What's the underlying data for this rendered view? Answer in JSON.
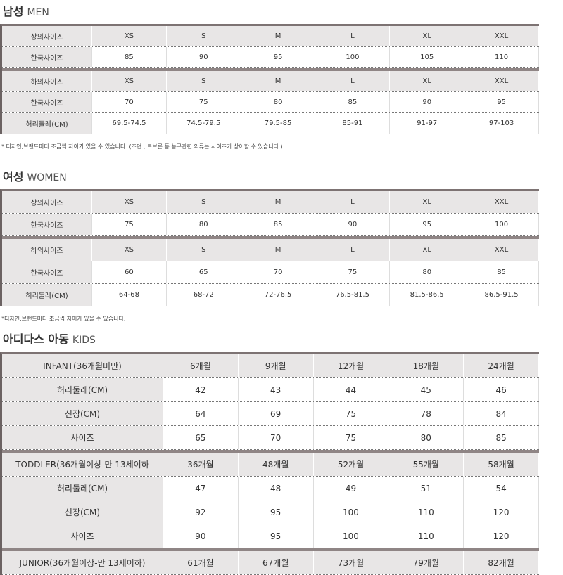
{
  "sections": [
    {
      "title_ko": "남성",
      "title_en": "MEN",
      "groups": [
        [
          [
            "상의사이즈",
            "XS",
            "S",
            "M",
            "L",
            "XL",
            "XXL"
          ],
          [
            "한국사이즈",
            "85",
            "90",
            "95",
            "100",
            "105",
            "110"
          ]
        ],
        [
          [
            "하의사이즈",
            "XS",
            "S",
            "M",
            "L",
            "XL",
            "XXL"
          ],
          [
            "한국사이즈",
            "70",
            "75",
            "80",
            "85",
            "90",
            "95"
          ],
          [
            "허리둘레(CM)",
            "69.5-74.5",
            "74.5-79.5",
            "79.5-85",
            "85-91",
            "91-97",
            "97-103"
          ]
        ]
      ],
      "note": "* 디자인,브랜드마다 조금씩 차이가 있을 수 있습니다. (조던 , 르브론 등 농구관련 의류는 사이즈가 상이할 수 있습니다.)"
    },
    {
      "title_ko": "여성",
      "title_en": "WOMEN",
      "groups": [
        [
          [
            "상의사이즈",
            "XS",
            "S",
            "M",
            "L",
            "XL",
            "XXL"
          ],
          [
            "한국사이즈",
            "75",
            "80",
            "85",
            "90",
            "95",
            "100"
          ]
        ],
        [
          [
            "하의사이즈",
            "XS",
            "S",
            "M",
            "L",
            "XL",
            "XXL"
          ],
          [
            "한국사이즈",
            "60",
            "65",
            "70",
            "75",
            "80",
            "85"
          ],
          [
            "허리둘레(CM)",
            "64-68",
            "68-72",
            "72-76.5",
            "76.5-81.5",
            "81.5-86.5",
            "86.5-91.5"
          ]
        ]
      ],
      "note": "*디자인,브랜드마다 조금씩 차이가 있을 수 있습니다."
    },
    {
      "title_ko": "아디다스 아동",
      "title_en": "KIDS",
      "groups": [
        [
          [
            "INFANT(36개월미만)",
            "6개월",
            "9개월",
            "12개월",
            "18개월",
            "24개월"
          ],
          [
            "허리둘레(CM)",
            "42",
            "43",
            "44",
            "45",
            "46"
          ],
          [
            "신장(CM)",
            "64",
            "69",
            "75",
            "78",
            "84"
          ],
          [
            "사이즈",
            "65",
            "70",
            "75",
            "80",
            "85"
          ]
        ],
        [
          [
            "TODDLER(36개월이상-만 13세이하",
            "36개월",
            "48개월",
            "52개월",
            "55개월",
            "58개월"
          ],
          [
            "허리둘레(CM)",
            "47",
            "48",
            "49",
            "51",
            "54"
          ],
          [
            "신장(CM)",
            "92",
            "95",
            "100",
            "110",
            "120"
          ],
          [
            "사이즈",
            "90",
            "95",
            "100",
            "110",
            "120"
          ]
        ],
        [
          [
            "JUNIOR(36개월이상-만 13세이하)",
            "61개월",
            "67개월",
            "73개월",
            "79개월",
            "82개월"
          ]
        ]
      ]
    }
  ]
}
